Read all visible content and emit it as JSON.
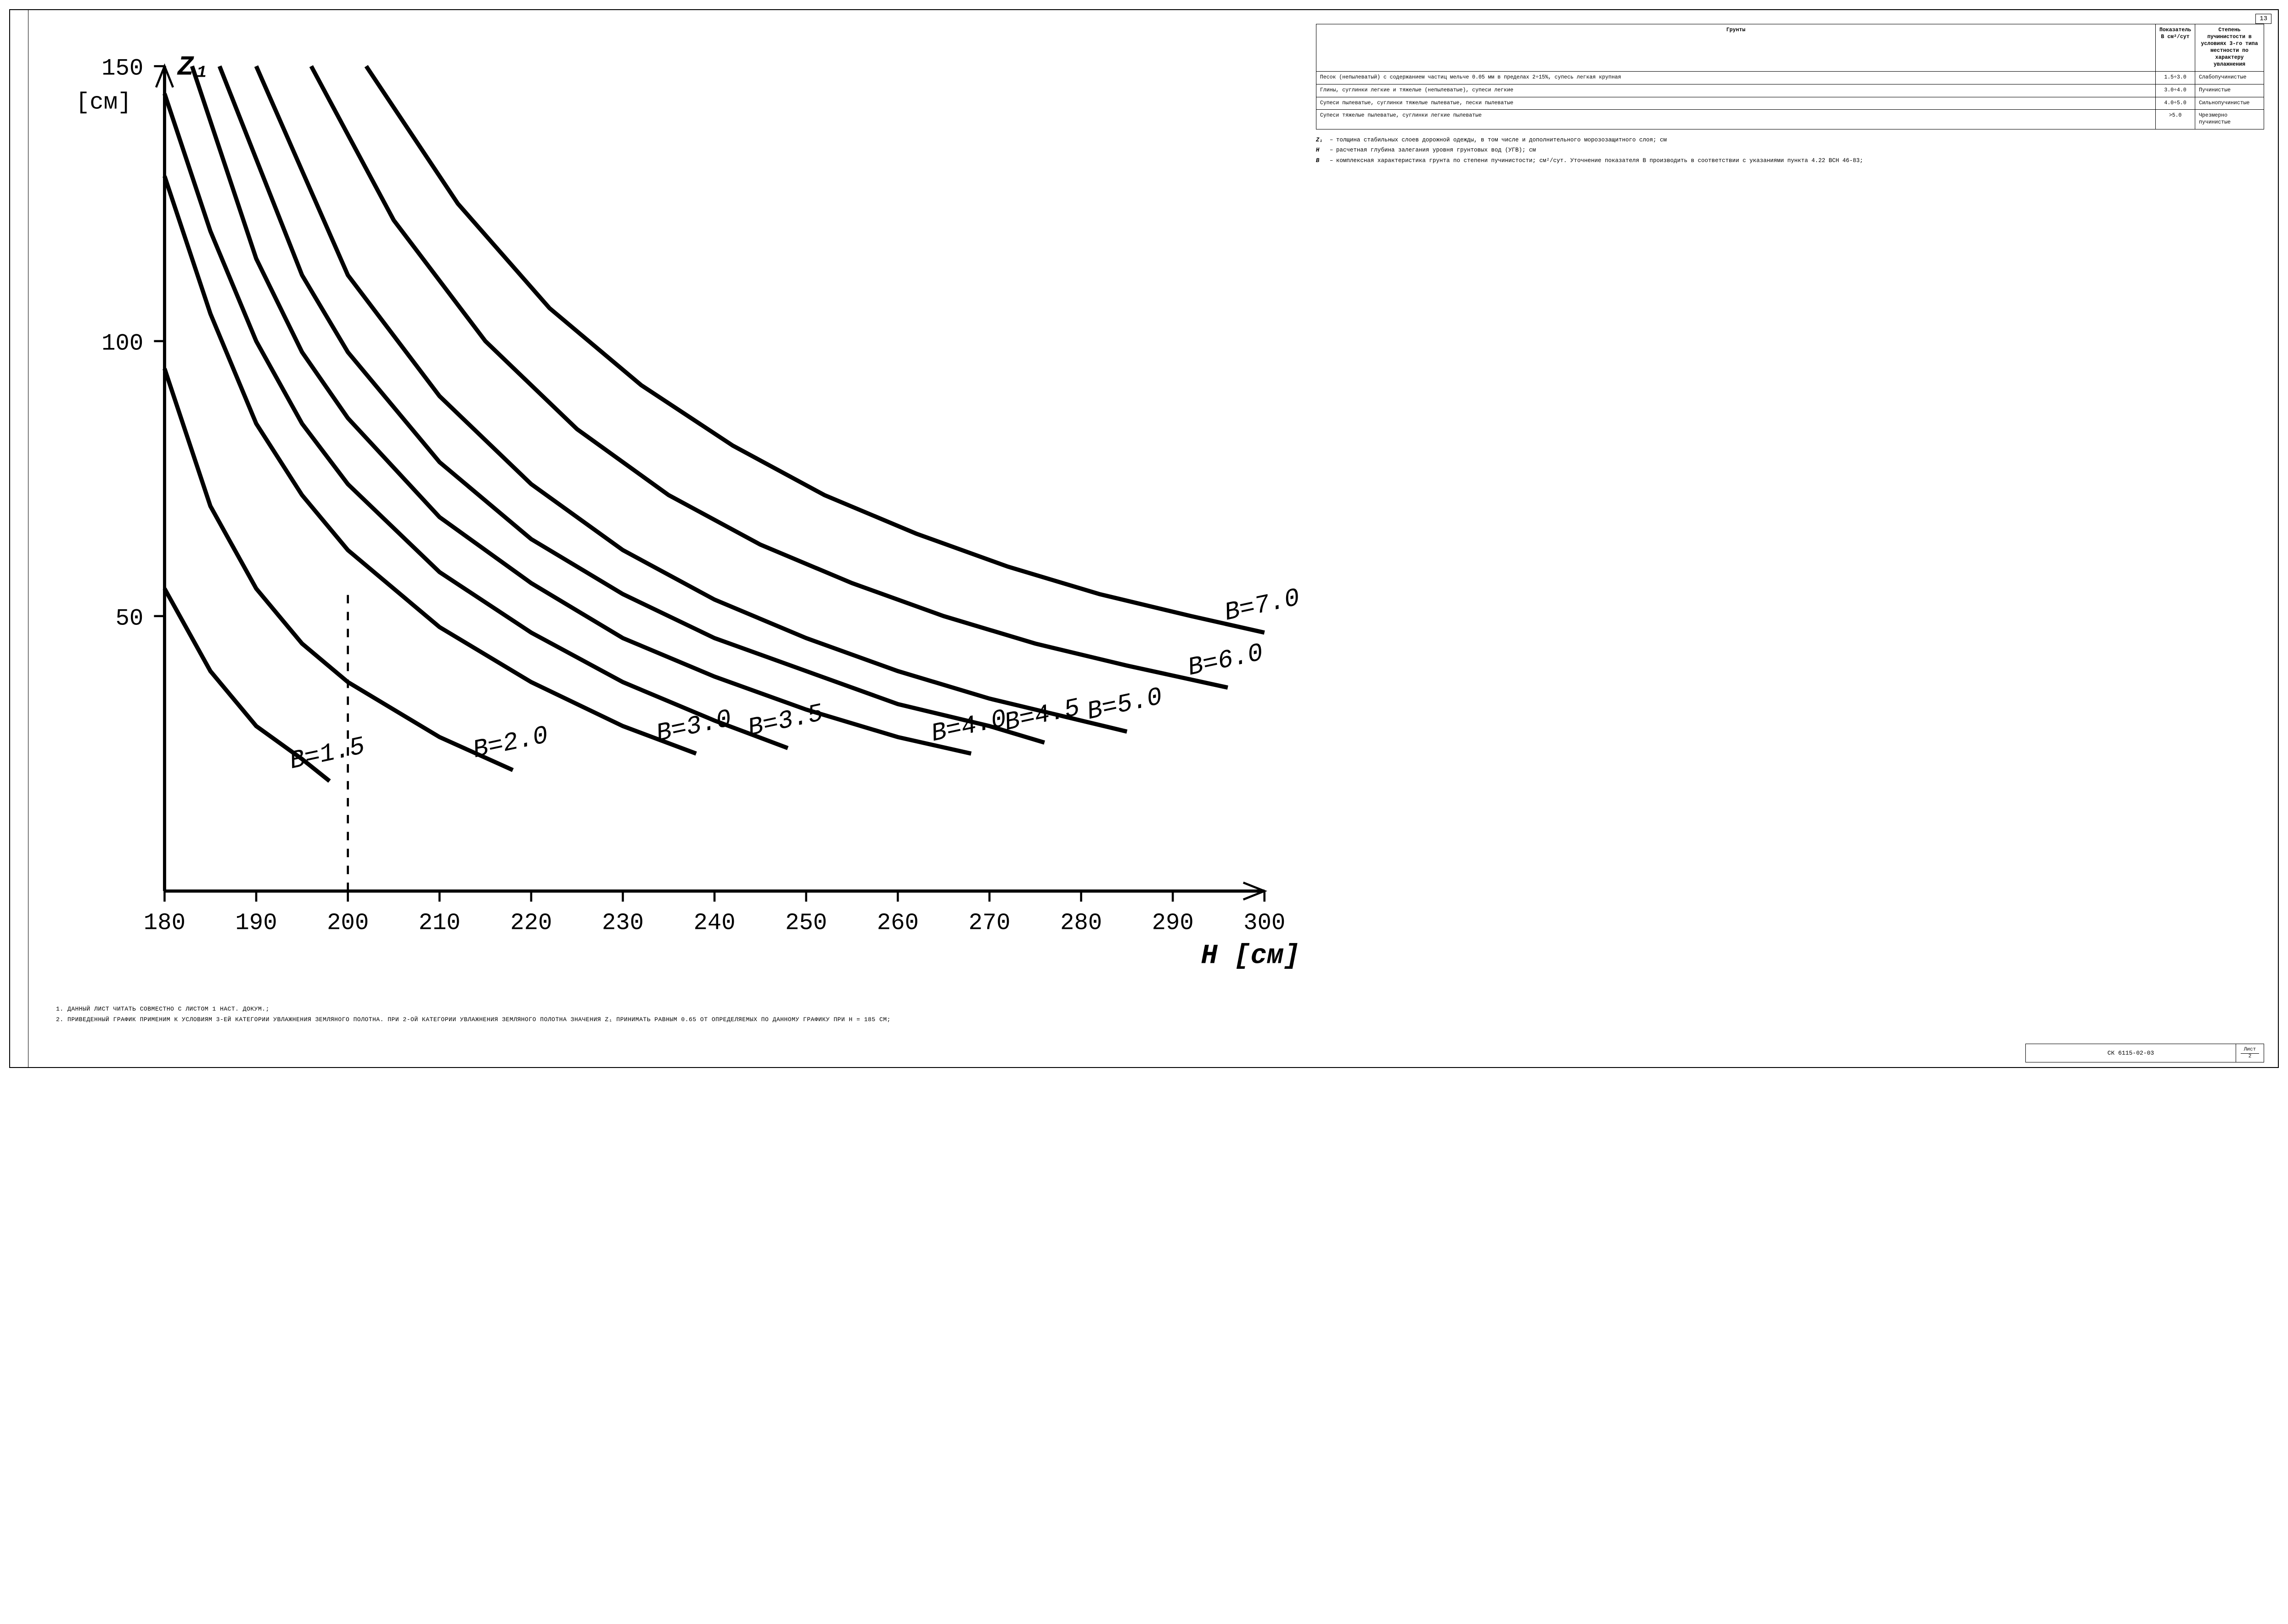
{
  "page_number_top": "13",
  "chart": {
    "type": "line",
    "y_axis_label": "Z₁",
    "y_axis_unit": "[см]",
    "x_axis_label": "H [см]",
    "xlim": [
      180,
      300
    ],
    "ylim": [
      0,
      150
    ],
    "x_ticks": [
      180,
      190,
      200,
      210,
      220,
      230,
      240,
      250,
      260,
      270,
      280,
      290,
      300
    ],
    "y_ticks": [
      0,
      50,
      100,
      150
    ],
    "background_color": "#ffffff",
    "grid_color": "#000000",
    "line_color": "#000000",
    "line_width": 2,
    "curves": [
      {
        "label": "B=1.5",
        "points": [
          [
            180,
            55
          ],
          [
            185,
            40
          ],
          [
            190,
            30
          ],
          [
            195,
            24
          ],
          [
            198,
            20
          ]
        ]
      },
      {
        "label": "B=2.0",
        "points": [
          [
            180,
            95
          ],
          [
            185,
            70
          ],
          [
            190,
            55
          ],
          [
            195,
            45
          ],
          [
            200,
            38
          ],
          [
            210,
            28
          ],
          [
            218,
            22
          ]
        ]
      },
      {
        "label": "B=3.0",
        "points": [
          [
            180,
            130
          ],
          [
            185,
            105
          ],
          [
            190,
            85
          ],
          [
            195,
            72
          ],
          [
            200,
            62
          ],
          [
            210,
            48
          ],
          [
            220,
            38
          ],
          [
            230,
            30
          ],
          [
            238,
            25
          ]
        ]
      },
      {
        "label": "B=3.5",
        "points": [
          [
            180,
            145
          ],
          [
            185,
            120
          ],
          [
            190,
            100
          ],
          [
            195,
            85
          ],
          [
            200,
            74
          ],
          [
            210,
            58
          ],
          [
            220,
            47
          ],
          [
            230,
            38
          ],
          [
            240,
            31
          ],
          [
            248,
            26
          ]
        ]
      },
      {
        "label": "B=4.0",
        "points": [
          [
            183,
            150
          ],
          [
            190,
            115
          ],
          [
            195,
            98
          ],
          [
            200,
            86
          ],
          [
            210,
            68
          ],
          [
            220,
            56
          ],
          [
            230,
            46
          ],
          [
            240,
            39
          ],
          [
            250,
            33
          ],
          [
            260,
            28
          ],
          [
            268,
            25
          ]
        ]
      },
      {
        "label": "B=4.5",
        "points": [
          [
            186,
            150
          ],
          [
            195,
            112
          ],
          [
            200,
            98
          ],
          [
            210,
            78
          ],
          [
            220,
            64
          ],
          [
            230,
            54
          ],
          [
            240,
            46
          ],
          [
            250,
            40
          ],
          [
            260,
            34
          ],
          [
            270,
            30
          ],
          [
            276,
            27
          ]
        ]
      },
      {
        "label": "B=5.0",
        "points": [
          [
            190,
            150
          ],
          [
            200,
            112
          ],
          [
            210,
            90
          ],
          [
            220,
            74
          ],
          [
            230,
            62
          ],
          [
            240,
            53
          ],
          [
            250,
            46
          ],
          [
            260,
            40
          ],
          [
            270,
            35
          ],
          [
            280,
            31
          ],
          [
            285,
            29
          ]
        ]
      },
      {
        "label": "B=6.0",
        "points": [
          [
            196,
            150
          ],
          [
            205,
            122
          ],
          [
            215,
            100
          ],
          [
            225,
            84
          ],
          [
            235,
            72
          ],
          [
            245,
            63
          ],
          [
            255,
            56
          ],
          [
            265,
            50
          ],
          [
            275,
            45
          ],
          [
            285,
            41
          ],
          [
            296,
            37
          ]
        ]
      },
      {
        "label": "B=7.0",
        "points": [
          [
            202,
            150
          ],
          [
            212,
            125
          ],
          [
            222,
            106
          ],
          [
            232,
            92
          ],
          [
            242,
            81
          ],
          [
            252,
            72
          ],
          [
            262,
            65
          ],
          [
            272,
            59
          ],
          [
            282,
            54
          ],
          [
            292,
            50
          ],
          [
            300,
            47
          ]
        ]
      }
    ]
  },
  "table": {
    "headers": {
      "col_a": "Грунты",
      "col_b": "Показатель B см²/сут",
      "col_c": "Степень пучинистости в условиях 3-го типа местности по характеру увлажнения"
    },
    "rows": [
      {
        "a": "Песок (непылеватый) с содержанием частиц мельче 0.05 мм в пределах 2÷15%, супесь легкая крупная",
        "b": "1.5÷3.0",
        "c": "Слабопучинистые"
      },
      {
        "a": "Глины, суглинки легкие и тяжелые (непылеватые), супеси легкие",
        "b": "3.0÷4.0",
        "c": "Пучинистые"
      },
      {
        "a": "Супеси пылеватые, суглинки тяжелые пылеватые, пески пылеватые",
        "b": "4.0÷5.0",
        "c": "Сильнопучинистые"
      },
      {
        "a": "Супеси тяжелые пылеватые, суглинки легкие пылеватые",
        "b": ">5.0",
        "c": "Чрезмерно пучинистые"
      }
    ]
  },
  "legend": {
    "Z1": "толщина стабильных слоев дорожной одежды, в том числе и дополнительного морозозащитного слоя; см",
    "H": "расчетная глубина залегания уровня грунтовых вод (УГВ); см",
    "B": "комплексная характеристика грунта по степени пучинистости; см²/сут. Уточнение показателя B производить в соответствии с указаниями пункта 4.22 ВСН 46-83;"
  },
  "notes": [
    "Данный лист читать совместно с листом 1 наст. докум.;",
    "Приведенный график применим к условиям 3-ей категории увлажнения земляного полотна. При 2-ой категории увлажнения земляного полотна значения Z₁ принимать равным 0.65 от определяемых по данному графику при H = 185 см;"
  ],
  "titleblock": {
    "code": "СК 6115-02-03",
    "sheet_label": "Лист",
    "sheet_num": "2"
  }
}
